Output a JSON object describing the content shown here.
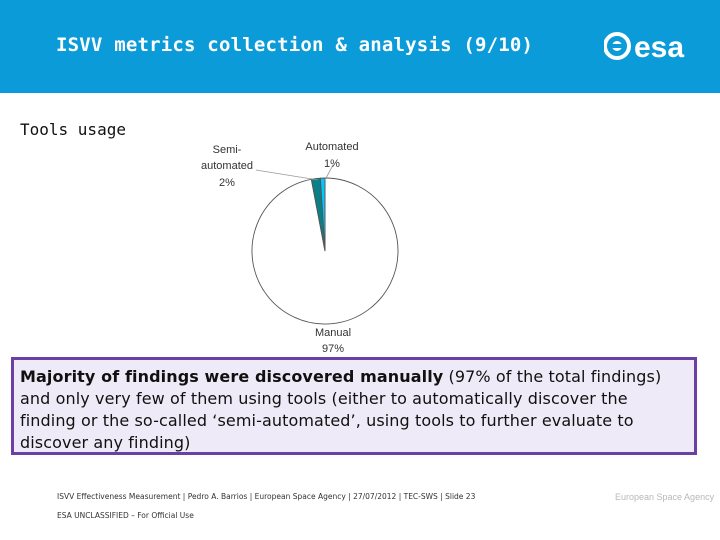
{
  "slide": {
    "title": "ISVV metrics collection & analysis  (9/10)",
    "section": "Tools usage",
    "logo_text": "esa"
  },
  "chart_data": {
    "type": "pie",
    "slices": [
      {
        "label_line1": "Automated",
        "label_line2": "",
        "value_label": "1%",
        "value": 1,
        "color": "#00c8ff"
      },
      {
        "label_line1": "Semi-",
        "label_line2": "automated",
        "value_label": "2%",
        "value": 2,
        "color": "#0a7f86"
      },
      {
        "label_line1": "Manual",
        "label_line2": "",
        "value_label": "97%",
        "value": 97,
        "color": "#ffffff"
      }
    ],
    "legend": "none"
  },
  "callout": {
    "bold": "Majority of findings were discovered manually",
    "rest": " (97% of the total findings) and only very few of them using tools (either to automatically discover the finding or the so-called ‘semi-automated’, using tools to further evaluate to discover any finding)"
  },
  "footer": {
    "line": "ISVV Effectiveness Measurement | Pedro A. Barrios | European Space Agency | 27/07/2012 | TEC-SWS | Slide 23",
    "classification": "ESA UNCLASSIFIED – For Official Use",
    "brand": "European Space Agency"
  },
  "colors": {
    "header": "#0a9bd8",
    "callout_border": "#6b40a5",
    "callout_bg": "#efeaf7"
  }
}
